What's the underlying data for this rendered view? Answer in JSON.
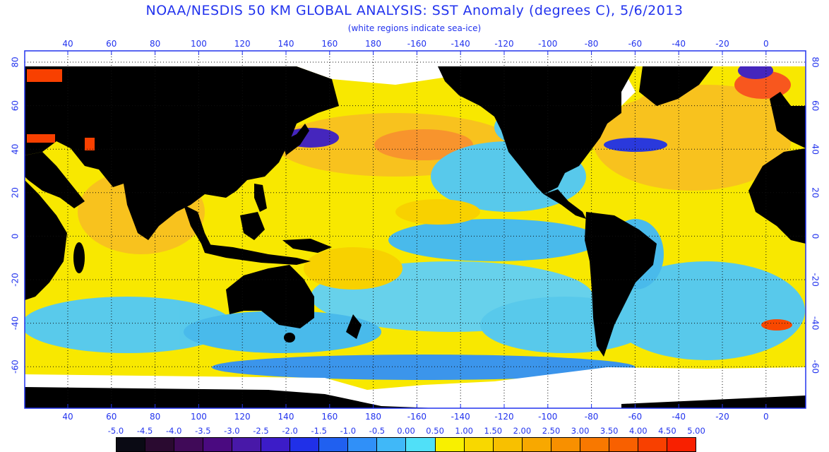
{
  "title": "NOAA/NESDIS 50 KM GLOBAL ANALYSIS: SST Anomaly (degrees C), 5/6/2013",
  "subtitle": "(white regions indicate sea-ice)",
  "axes": {
    "lon_ticks": [
      "40",
      "60",
      "80",
      "100",
      "120",
      "140",
      "160",
      "180",
      "-160",
      "-140",
      "-120",
      "-100",
      "-80",
      "-60",
      "-40",
      "-20",
      "0"
    ],
    "lat_ticks": [
      "80",
      "60",
      "40",
      "20",
      "0",
      "-20",
      "-40",
      "-60"
    ]
  },
  "legend": {
    "labels": [
      "-5.0",
      "-4.5",
      "-4.0",
      "-3.5",
      "-3.0",
      "-2.5",
      "-2.0",
      "-1.5",
      "-1.0",
      "-0.5",
      "0.00",
      "0.50",
      "1.00",
      "1.50",
      "2.00",
      "2.50",
      "3.00",
      "3.50",
      "4.00",
      "4.50",
      "5.00"
    ],
    "colors": [
      "#0a0a14",
      "#2a0a30",
      "#400a58",
      "#4a0a80",
      "#4818a8",
      "#3c1cc8",
      "#2030e8",
      "#2060f0",
      "#3090f8",
      "#40b8f8",
      "#50e0f8",
      "#f8f000",
      "#f8d800",
      "#f8c000",
      "#f8a800",
      "#f89000",
      "#f87800",
      "#f86000",
      "#f84000",
      "#f82000"
    ]
  },
  "colors": {
    "text": "#2233ee",
    "land": "#000000",
    "ice": "#ffffff",
    "ocean_warm": "#f8c020",
    "ocean_neutral": "#f8e800",
    "ocean_cool": "#40b8f8",
    "ocean_cold": "#2060f0",
    "anomaly_hot": "#f85020"
  }
}
